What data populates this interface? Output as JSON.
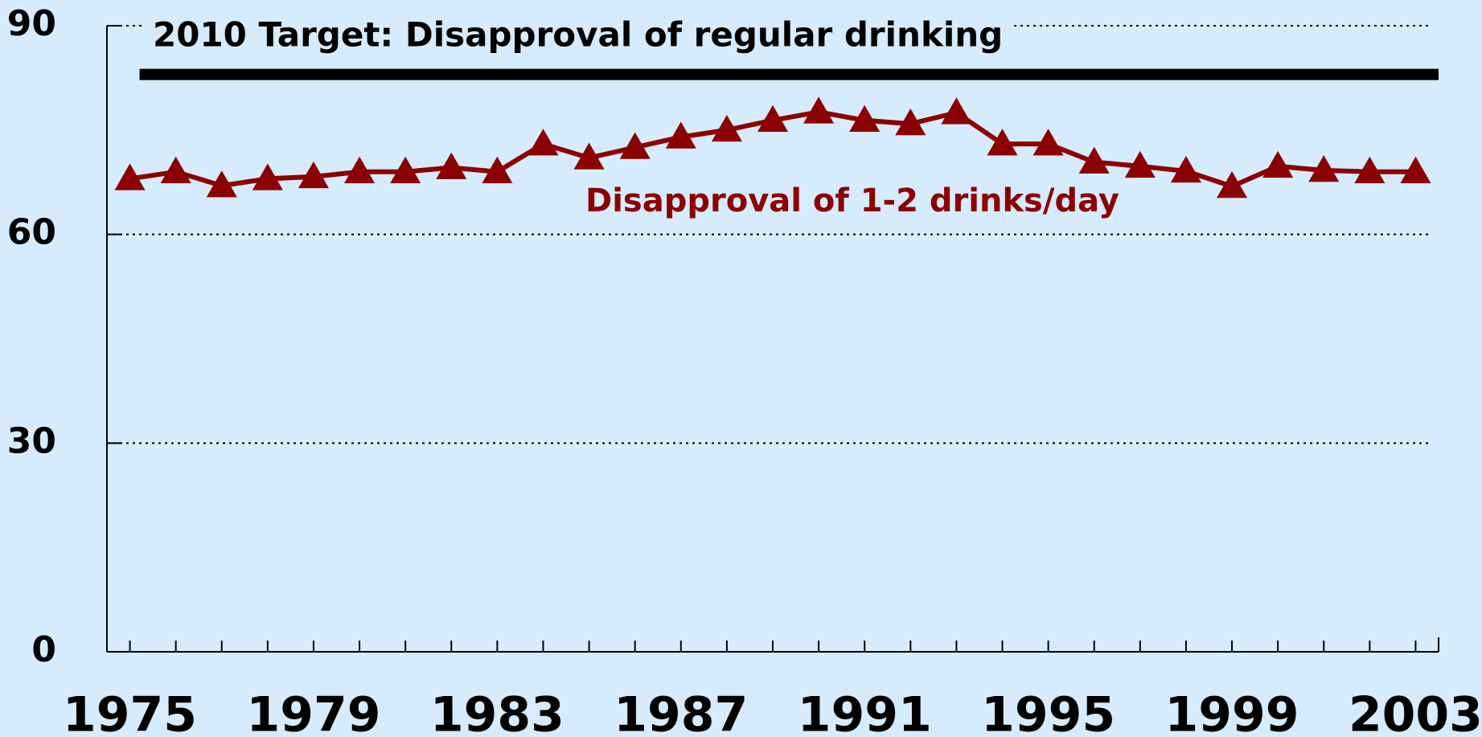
{
  "chart_data": {
    "type": "line",
    "x": [
      1975,
      1976,
      1977,
      1978,
      1979,
      1980,
      1981,
      1982,
      1983,
      1984,
      1985,
      1986,
      1987,
      1988,
      1989,
      1990,
      1991,
      1992,
      1993,
      1994,
      1995,
      1996,
      1997,
      1998,
      1999,
      2000,
      2001,
      2002,
      2003
    ],
    "series": [
      {
        "name": "Disapproval of 1-2 drinks/day",
        "color": "#8b0000",
        "values": [
          68,
          69,
          67,
          68,
          68.3,
          69,
          69,
          69.6,
          69,
          73,
          71,
          72.5,
          74,
          75,
          76.4,
          77.6,
          76.4,
          75.9,
          77.5,
          73,
          73,
          70.4,
          69.8,
          69.1,
          66.9,
          69.8,
          69.2,
          69,
          69
        ]
      }
    ],
    "target": {
      "label": "2010 Target: Disapproval of regular drinking",
      "value": 83,
      "color": "#000000"
    },
    "xlim": [
      1974.5,
      2003.5
    ],
    "xticks": [
      1975,
      1979,
      1983,
      1987,
      1991,
      1995,
      1999,
      2003
    ],
    "ylim": [
      0,
      90
    ],
    "yticks": [
      0,
      30,
      60,
      90
    ],
    "grid": true
  }
}
